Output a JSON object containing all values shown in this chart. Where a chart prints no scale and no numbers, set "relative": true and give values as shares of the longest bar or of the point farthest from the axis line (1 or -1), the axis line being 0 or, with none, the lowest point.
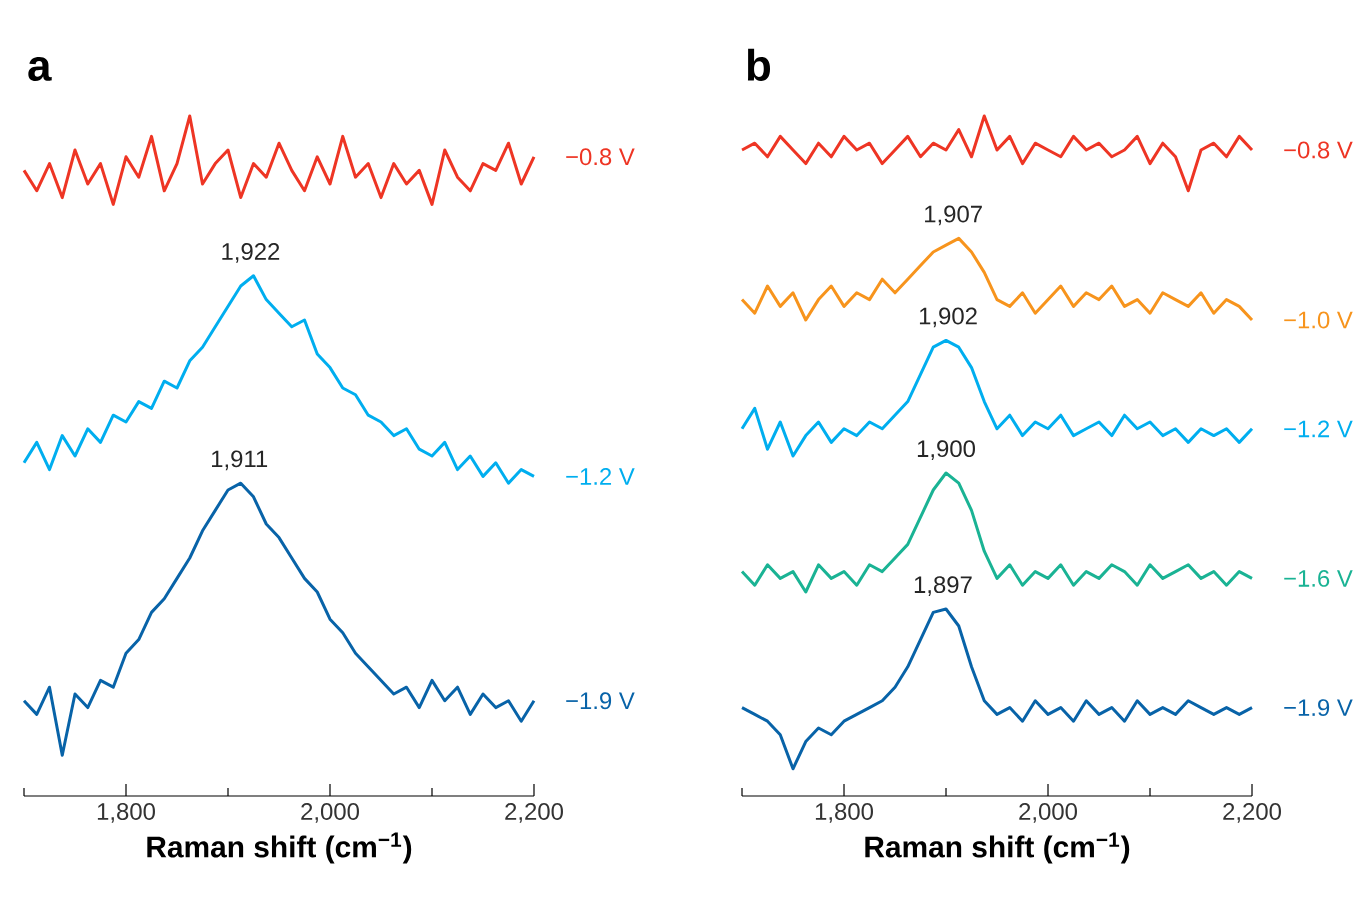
{
  "chart_data": [
    {
      "type": "line",
      "title": "a",
      "xlabel": "Raman shift (cm$^{−1}$)",
      "relative": true,
      "xlim": [
        1700,
        2200
      ],
      "xticks": [
        {
          "value": 1700,
          "label": null
        },
        {
          "value": 1800,
          "label": "1,800"
        },
        {
          "value": 1900,
          "label": null
        },
        {
          "value": 2000,
          "label": "2,000"
        },
        {
          "value": 2100,
          "label": null
        },
        {
          "value": 2200,
          "label": "2,200"
        }
      ],
      "x": [
        1700,
        1712.5,
        1725,
        1737.5,
        1750,
        1762.5,
        1775,
        1787.5,
        1800,
        1812.5,
        1825,
        1837.5,
        1850,
        1862.5,
        1875,
        1887.5,
        1900,
        1912.5,
        1925,
        1937.5,
        1950,
        1962.5,
        1975,
        1987.5,
        2000,
        2012.5,
        2025,
        2037.5,
        2050,
        2062.5,
        2075,
        2087.5,
        2100,
        2112.5,
        2125,
        2137.5,
        2150,
        2162.5,
        2175,
        2187.5,
        2200
      ],
      "series": [
        {
          "name": "−0.8 V",
          "color": "#ee3524",
          "values": [
            0.92,
            0.89,
            0.93,
            0.88,
            0.95,
            0.9,
            0.93,
            0.87,
            0.94,
            0.91,
            0.97,
            0.89,
            0.93,
            1.0,
            0.9,
            0.93,
            0.95,
            0.88,
            0.93,
            0.91,
            0.96,
            0.92,
            0.89,
            0.94,
            0.9,
            0.97,
            0.91,
            0.93,
            0.88,
            0.93,
            0.9,
            0.92,
            0.87,
            0.95,
            0.91,
            0.89,
            0.93,
            0.92,
            0.96,
            0.9,
            0.94
          ]
        },
        {
          "name": "−1.2 V",
          "color": "#00aeef",
          "values": [
            0.49,
            0.52,
            0.48,
            0.53,
            0.5,
            0.54,
            0.52,
            0.56,
            0.55,
            0.58,
            0.57,
            0.61,
            0.6,
            0.64,
            0.66,
            0.69,
            0.72,
            0.75,
            0.765,
            0.73,
            0.71,
            0.69,
            0.7,
            0.65,
            0.63,
            0.6,
            0.59,
            0.56,
            0.55,
            0.53,
            0.54,
            0.51,
            0.5,
            0.52,
            0.48,
            0.5,
            0.47,
            0.49,
            0.46,
            0.48,
            0.47
          ]
        },
        {
          "name": "−1.9 V",
          "color": "#0863a8",
          "values": [
            0.14,
            0.12,
            0.16,
            0.06,
            0.15,
            0.13,
            0.17,
            0.16,
            0.21,
            0.23,
            0.27,
            0.29,
            0.32,
            0.35,
            0.39,
            0.42,
            0.45,
            0.46,
            0.44,
            0.4,
            0.38,
            0.35,
            0.32,
            0.3,
            0.26,
            0.24,
            0.21,
            0.19,
            0.17,
            0.15,
            0.16,
            0.13,
            0.17,
            0.14,
            0.16,
            0.12,
            0.15,
            0.13,
            0.14,
            0.11,
            0.14
          ]
        }
      ],
      "annotations": [
        {
          "text": "1,922",
          "x": 1922,
          "y": 0.765
        },
        {
          "text": "1,911",
          "x": 1911,
          "y": 0.46
        }
      ]
    },
    {
      "type": "line",
      "title": "b",
      "xlabel": "Raman shift (cm$^{−1}$)",
      "relative": true,
      "xlim": [
        1700,
        2200
      ],
      "xticks": [
        {
          "value": 1700,
          "label": null
        },
        {
          "value": 1800,
          "label": "1,800"
        },
        {
          "value": 1900,
          "label": null
        },
        {
          "value": 2000,
          "label": "2,000"
        },
        {
          "value": 2100,
          "label": null
        },
        {
          "value": 2200,
          "label": "2,200"
        }
      ],
      "x": [
        1700,
        1712.5,
        1725,
        1737.5,
        1750,
        1762.5,
        1775,
        1787.5,
        1800,
        1812.5,
        1825,
        1837.5,
        1850,
        1862.5,
        1875,
        1887.5,
        1900,
        1912.5,
        1925,
        1937.5,
        1950,
        1962.5,
        1975,
        1987.5,
        2000,
        2012.5,
        2025,
        2037.5,
        2050,
        2062.5,
        2075,
        2087.5,
        2100,
        2112.5,
        2125,
        2137.5,
        2150,
        2162.5,
        2175,
        2187.5,
        2200
      ],
      "series": [
        {
          "name": "−0.8 V",
          "color": "#ee3524",
          "values": [
            0.95,
            0.96,
            0.94,
            0.97,
            0.95,
            0.93,
            0.96,
            0.94,
            0.97,
            0.95,
            0.96,
            0.93,
            0.95,
            0.97,
            0.94,
            0.96,
            0.95,
            0.98,
            0.94,
            1.0,
            0.95,
            0.97,
            0.93,
            0.96,
            0.95,
            0.94,
            0.97,
            0.95,
            0.96,
            0.94,
            0.95,
            0.97,
            0.93,
            0.96,
            0.94,
            0.89,
            0.95,
            0.96,
            0.94,
            0.97,
            0.95
          ]
        },
        {
          "name": "−1.0 V",
          "color": "#f7941d",
          "values": [
            0.73,
            0.71,
            0.75,
            0.72,
            0.74,
            0.7,
            0.73,
            0.75,
            0.72,
            0.74,
            0.73,
            0.76,
            0.74,
            0.76,
            0.78,
            0.8,
            0.81,
            0.82,
            0.8,
            0.77,
            0.73,
            0.72,
            0.74,
            0.71,
            0.73,
            0.75,
            0.72,
            0.74,
            0.73,
            0.75,
            0.72,
            0.73,
            0.71,
            0.74,
            0.73,
            0.72,
            0.74,
            0.71,
            0.73,
            0.72,
            0.7
          ]
        },
        {
          "name": "−1.2 V",
          "color": "#00aeef",
          "values": [
            0.54,
            0.57,
            0.51,
            0.55,
            0.5,
            0.53,
            0.55,
            0.52,
            0.54,
            0.53,
            0.55,
            0.54,
            0.56,
            0.58,
            0.62,
            0.66,
            0.67,
            0.66,
            0.63,
            0.58,
            0.54,
            0.56,
            0.53,
            0.55,
            0.54,
            0.56,
            0.53,
            0.54,
            0.55,
            0.53,
            0.56,
            0.54,
            0.55,
            0.53,
            0.54,
            0.52,
            0.54,
            0.53,
            0.54,
            0.52,
            0.54
          ]
        },
        {
          "name": "−1.6 V",
          "color": "#1ab394",
          "values": [
            0.33,
            0.31,
            0.34,
            0.32,
            0.33,
            0.3,
            0.34,
            0.32,
            0.33,
            0.31,
            0.34,
            0.33,
            0.35,
            0.37,
            0.41,
            0.45,
            0.475,
            0.46,
            0.42,
            0.36,
            0.32,
            0.34,
            0.31,
            0.33,
            0.32,
            0.34,
            0.31,
            0.33,
            0.32,
            0.34,
            0.33,
            0.31,
            0.34,
            0.32,
            0.33,
            0.34,
            0.32,
            0.33,
            0.31,
            0.33,
            0.32
          ]
        },
        {
          "name": "−1.9 V",
          "color": "#0863a8",
          "values": [
            0.13,
            0.12,
            0.11,
            0.09,
            0.04,
            0.08,
            0.1,
            0.09,
            0.11,
            0.12,
            0.13,
            0.14,
            0.16,
            0.19,
            0.23,
            0.27,
            0.275,
            0.25,
            0.19,
            0.14,
            0.12,
            0.13,
            0.11,
            0.14,
            0.12,
            0.13,
            0.11,
            0.14,
            0.12,
            0.13,
            0.11,
            0.14,
            0.12,
            0.13,
            0.12,
            0.14,
            0.13,
            0.12,
            0.13,
            0.12,
            0.13
          ]
        }
      ],
      "annotations": [
        {
          "text": "1,907",
          "x": 1907,
          "y": 0.82
        },
        {
          "text": "1,902",
          "x": 1902,
          "y": 0.67
        },
        {
          "text": "1,900",
          "x": 1900,
          "y": 0.475
        },
        {
          "text": "1,897",
          "x": 1897,
          "y": 0.275
        }
      ]
    }
  ]
}
